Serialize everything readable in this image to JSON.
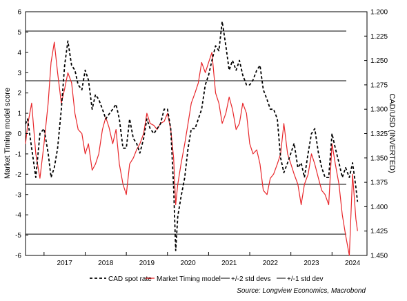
{
  "chart_data": {
    "type": "line",
    "xlabel": "",
    "ylabel_left": "Market Timing model score",
    "ylabel_right": "CAD/USD (INVERTED)",
    "ylim_left": [
      -6,
      6
    ],
    "ylim_right": [
      1.2,
      1.45
    ],
    "right_axis_inverted": true,
    "x_range": [
      2016.55,
      2024.85
    ],
    "x_ticks": [
      "2017",
      "2018",
      "2019",
      "2020",
      "2021",
      "2022",
      "2023",
      "2024"
    ],
    "y_ticks_left": [
      "6",
      "5",
      "4",
      "3",
      "2",
      "1",
      "0",
      "-1",
      "-2",
      "-3",
      "-4",
      "-5",
      "-6"
    ],
    "y_ticks_right": [
      "1.200",
      "1.225",
      "1.250",
      "1.275",
      "1.300",
      "1.325",
      "1.350",
      "1.375",
      "1.400",
      "1.425",
      "1.450"
    ],
    "grid": false,
    "legend_position": "bottom",
    "hlines": [
      {
        "y": 5.05,
        "series": "+/-2 std devs"
      },
      {
        "y": 2.6,
        "series": "+/-1 std dev"
      },
      {
        "y": -2.5,
        "series": "+/-1 std dev"
      },
      {
        "y": -4.95,
        "series": "+/-2 std devs"
      }
    ],
    "series": [
      {
        "name": "CAD spot rate",
        "axis": "right",
        "color": "#000000",
        "style": "dashed",
        "x": [
          2016.55,
          2016.6,
          2016.7,
          2016.8,
          2016.9,
          2017.0,
          2017.1,
          2017.17,
          2017.25,
          2017.33,
          2017.42,
          2017.5,
          2017.58,
          2017.67,
          2017.75,
          2017.83,
          2017.92,
          2018.0,
          2018.08,
          2018.17,
          2018.25,
          2018.33,
          2018.42,
          2018.5,
          2018.58,
          2018.67,
          2018.75,
          2018.83,
          2018.92,
          2019.0,
          2019.08,
          2019.17,
          2019.25,
          2019.33,
          2019.42,
          2019.5,
          2019.58,
          2019.67,
          2019.75,
          2019.83,
          2019.92,
          2020.0,
          2020.08,
          2020.15,
          2020.2,
          2020.25,
          2020.33,
          2020.42,
          2020.5,
          2020.58,
          2020.67,
          2020.75,
          2020.83,
          2020.92,
          2021.0,
          2021.08,
          2021.17,
          2021.25,
          2021.33,
          2021.42,
          2021.5,
          2021.58,
          2021.67,
          2021.75,
          2021.83,
          2021.92,
          2022.0,
          2022.08,
          2022.17,
          2022.25,
          2022.33,
          2022.42,
          2022.5,
          2022.58,
          2022.67,
          2022.75,
          2022.83,
          2022.92,
          2023.0,
          2023.08,
          2023.17,
          2023.25,
          2023.33,
          2023.42,
          2023.5,
          2023.58,
          2023.67,
          2023.75,
          2023.83,
          2023.92,
          2024.0,
          2024.08,
          2024.17,
          2024.25,
          2024.33,
          2024.42,
          2024.5,
          2024.58,
          2024.62
        ],
        "values": [
          1.315,
          1.31,
          1.34,
          1.37,
          1.325,
          1.32,
          1.345,
          1.37,
          1.36,
          1.34,
          1.3,
          1.255,
          1.23,
          1.255,
          1.26,
          1.275,
          1.28,
          1.26,
          1.27,
          1.3,
          1.285,
          1.29,
          1.3,
          1.31,
          1.305,
          1.3,
          1.295,
          1.31,
          1.34,
          1.34,
          1.31,
          1.33,
          1.335,
          1.345,
          1.33,
          1.31,
          1.32,
          1.325,
          1.32,
          1.315,
          1.3,
          1.3,
          1.32,
          1.38,
          1.445,
          1.41,
          1.39,
          1.37,
          1.34,
          1.32,
          1.32,
          1.31,
          1.3,
          1.275,
          1.265,
          1.25,
          1.235,
          1.24,
          1.21,
          1.235,
          1.26,
          1.25,
          1.26,
          1.25,
          1.265,
          1.275,
          1.275,
          1.27,
          1.26,
          1.255,
          1.28,
          1.29,
          1.3,
          1.3,
          1.31,
          1.35,
          1.365,
          1.355,
          1.345,
          1.335,
          1.36,
          1.355,
          1.37,
          1.345,
          1.325,
          1.32,
          1.345,
          1.36,
          1.37,
          1.37,
          1.325,
          1.34,
          1.355,
          1.37,
          1.36,
          1.37,
          1.355,
          1.38,
          1.395
        ]
      },
      {
        "name": "Market Timing model",
        "axis": "left",
        "color": "#e8262a",
        "style": "solid",
        "x": [
          2016.55,
          2016.6,
          2016.7,
          2016.8,
          2016.9,
          2017.0,
          2017.1,
          2017.17,
          2017.25,
          2017.33,
          2017.42,
          2017.5,
          2017.58,
          2017.67,
          2017.75,
          2017.83,
          2017.92,
          2018.0,
          2018.08,
          2018.17,
          2018.25,
          2018.33,
          2018.42,
          2018.5,
          2018.58,
          2018.67,
          2018.75,
          2018.83,
          2018.92,
          2019.0,
          2019.08,
          2019.17,
          2019.25,
          2019.33,
          2019.42,
          2019.5,
          2019.58,
          2019.67,
          2019.75,
          2019.83,
          2019.92,
          2020.0,
          2020.08,
          2020.15,
          2020.2,
          2020.25,
          2020.33,
          2020.42,
          2020.5,
          2020.58,
          2020.67,
          2020.75,
          2020.83,
          2020.92,
          2021.0,
          2021.08,
          2021.17,
          2021.25,
          2021.33,
          2021.42,
          2021.5,
          2021.58,
          2021.67,
          2021.75,
          2021.83,
          2021.92,
          2022.0,
          2022.08,
          2022.17,
          2022.25,
          2022.33,
          2022.42,
          2022.5,
          2022.58,
          2022.67,
          2022.75,
          2022.83,
          2022.92,
          2023.0,
          2023.08,
          2023.17,
          2023.25,
          2023.33,
          2023.42,
          2023.5,
          2023.58,
          2023.67,
          2023.75,
          2023.83,
          2023.92,
          2024.0,
          2024.08,
          2024.17,
          2024.25,
          2024.33,
          2024.42,
          2024.5,
          2024.58,
          2024.62
        ],
        "values": [
          -0.5,
          0.4,
          1.5,
          -1.0,
          -2.2,
          -0.5,
          1.5,
          3.5,
          4.5,
          3.0,
          1.5,
          2.2,
          3.0,
          2.5,
          1.0,
          0.2,
          0.0,
          -1.0,
          -0.5,
          -1.8,
          -1.5,
          -1.0,
          0.2,
          0.8,
          0.3,
          -0.5,
          0.2,
          -1.5,
          -2.5,
          -3.0,
          -1.5,
          -1.2,
          -0.8,
          -0.5,
          0.0,
          1.0,
          0.5,
          0.4,
          0.2,
          0.5,
          0.6,
          1.0,
          0.2,
          -1.2,
          -3.5,
          -2.5,
          -1.5,
          -0.5,
          0.5,
          1.5,
          2.0,
          2.5,
          3.5,
          3.0,
          3.5,
          4.0,
          2.0,
          1.5,
          0.5,
          1.0,
          1.8,
          1.2,
          0.2,
          0.5,
          1.5,
          1.0,
          -0.5,
          -1.0,
          -0.8,
          -1.5,
          -2.8,
          -3.0,
          -2.2,
          -2.0,
          -1.5,
          -1.0,
          0.5,
          -1.0,
          -1.5,
          -2.0,
          -2.5,
          -3.5,
          -2.5,
          -2.0,
          -1.0,
          -1.5,
          -2.2,
          -2.8,
          -3.0,
          -3.5,
          -0.5,
          -1.5,
          -2.5,
          -4.0,
          -5.0,
          -6.0,
          -2.0,
          -4.2,
          -4.8
        ]
      }
    ]
  },
  "legend": {
    "items": [
      {
        "label": "CAD spot rate",
        "color": "#000000",
        "style": "dashed"
      },
      {
        "label": "Market Timing model",
        "color": "#e8262a",
        "style": "solid"
      },
      {
        "label": "+/-2 std devs",
        "color": "#000000",
        "style": "solid"
      },
      {
        "label": "+/-1 std dev",
        "color": "#000000",
        "style": "solid"
      }
    ]
  },
  "source": "Source: Longview Economics, Macrobond"
}
